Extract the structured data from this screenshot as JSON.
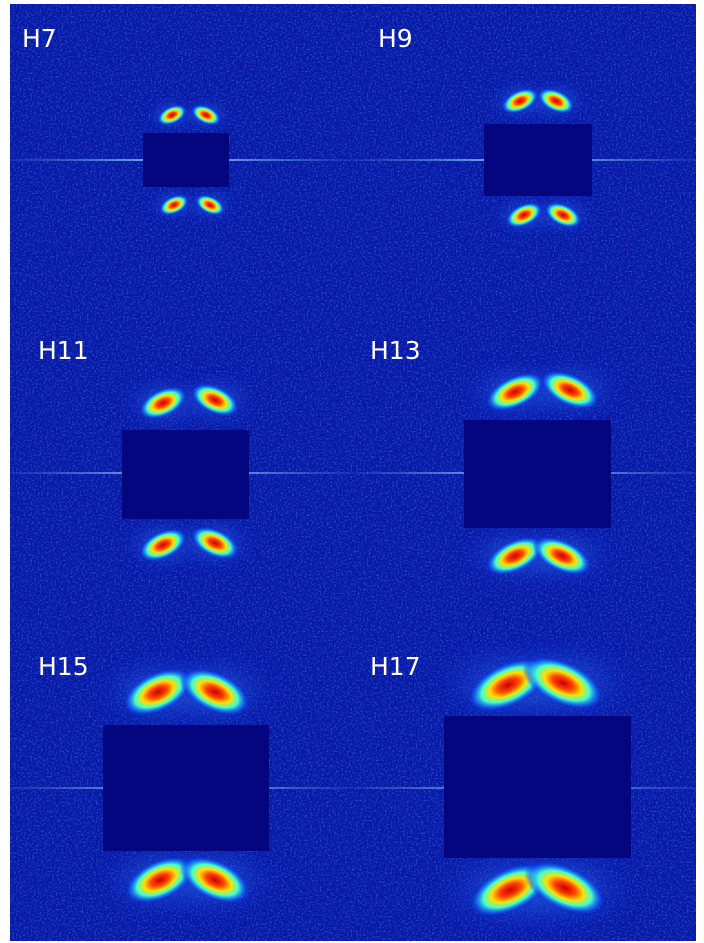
{
  "panels": [
    {
      "label": "H7"
    },
    {
      "label": "H9"
    },
    {
      "label": "H11"
    },
    {
      "label": "H13"
    },
    {
      "label": "H15"
    },
    {
      "label": "H17"
    }
  ]
}
